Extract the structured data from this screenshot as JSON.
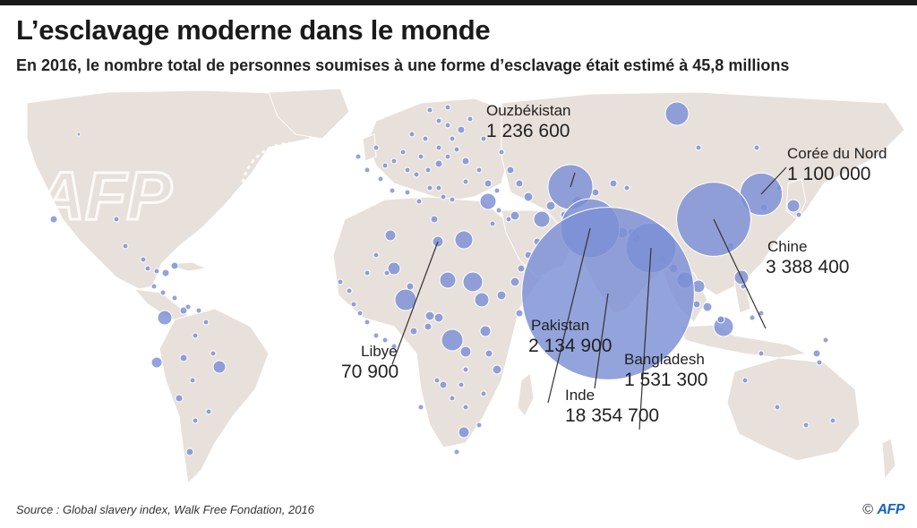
{
  "header": {
    "title": "L’esclavage moderne dans le monde",
    "subtitle": "En 2016, le nombre total de personnes soumises à une forme d’esclavage était estimé à 45,8 millions"
  },
  "callouts": [
    {
      "country": "Ouzbékistan",
      "value": "1 236 600",
      "raw": 1236600
    },
    {
      "country": "Corée du Nord",
      "value": "1 100 000",
      "raw": 1100000
    },
    {
      "country": "Chine",
      "value": "3 388 400",
      "raw": 3388400
    },
    {
      "country": "Pakistan",
      "value": "2 134 900",
      "raw": 2134900
    },
    {
      "country": "Bangladesh",
      "value": "1 531 300",
      "raw": 1531300
    },
    {
      "country": "Inde",
      "value": "18 354 700",
      "raw": 18354700
    },
    {
      "country": "Libye",
      "value": "70 900",
      "raw": 70900
    }
  ],
  "colors": {
    "land": "#e8e0da",
    "ocean": "#ffffff",
    "bubble": "#7b8fd4",
    "bubble_stroke": "#ffffff",
    "leader": "#333333"
  },
  "footer": {
    "source": "Source : Global slavery index, Walk Free Fondation, 2016",
    "copyright": "©",
    "agency": "AFP"
  },
  "watermark": "AFP"
}
